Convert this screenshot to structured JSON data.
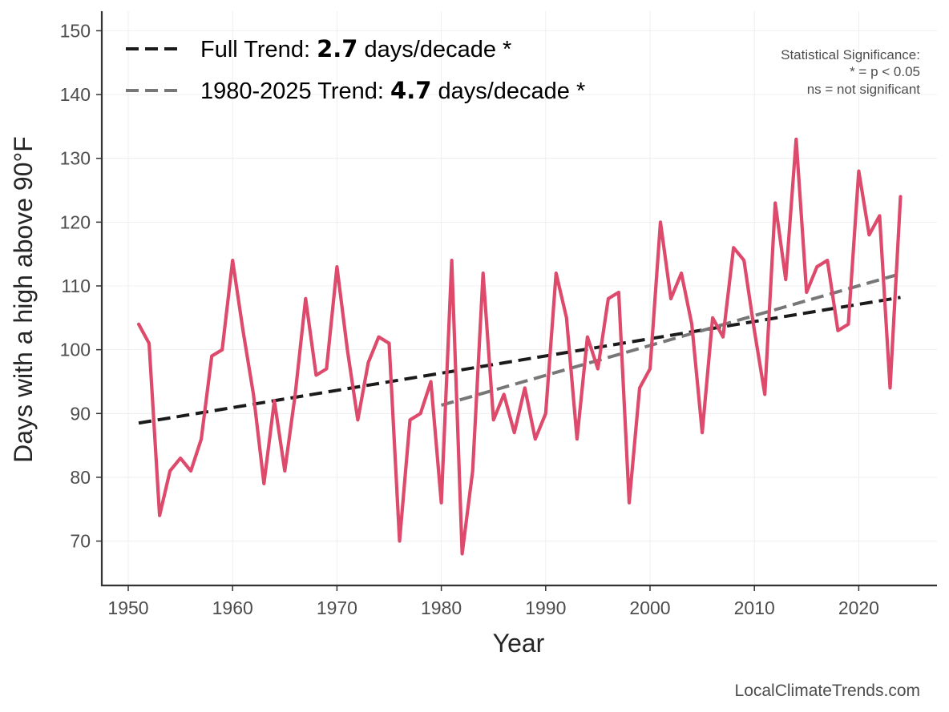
{
  "chart_data": {
    "type": "line",
    "xlabel": "Year",
    "ylabel": "Days with a high above 90°F",
    "xlim": [
      1950,
      2025
    ],
    "ylim": [
      63,
      153
    ],
    "x_ticks": [
      1950,
      1960,
      1970,
      1980,
      1990,
      2000,
      2010,
      2020
    ],
    "y_ticks": [
      70,
      80,
      90,
      100,
      110,
      120,
      130,
      140,
      150
    ],
    "grid": true,
    "series": [
      {
        "color": "#dd4a6b",
        "x": [
          1951,
          1952,
          1953,
          1954,
          1955,
          1956,
          1957,
          1958,
          1959,
          1960,
          1961,
          1962,
          1963,
          1964,
          1965,
          1966,
          1967,
          1968,
          1969,
          1970,
          1971,
          1972,
          1973,
          1974,
          1975,
          1976,
          1977,
          1978,
          1979,
          1980,
          1981,
          1982,
          1983,
          1984,
          1985,
          1986,
          1987,
          1988,
          1989,
          1990,
          1991,
          1992,
          1993,
          1994,
          1995,
          1996,
          1997,
          1998,
          1999,
          2000,
          2001,
          2002,
          2003,
          2004,
          2005,
          2006,
          2007,
          2008,
          2009,
          2010,
          2011,
          2012,
          2013,
          2014,
          2015,
          2016,
          2017,
          2018,
          2019,
          2020,
          2021,
          2022,
          2023,
          2024
        ],
        "y": [
          104,
          101,
          74,
          81,
          83,
          81,
          86,
          99,
          100,
          114,
          103,
          93,
          79,
          92,
          81,
          93,
          108,
          96,
          97,
          113,
          100,
          89,
          98,
          102,
          101,
          70,
          89,
          90,
          95,
          76,
          114,
          68,
          81,
          112,
          89,
          93,
          87,
          94,
          86,
          90,
          112,
          105,
          86,
          102,
          97,
          108,
          109,
          76,
          94,
          97,
          120,
          108,
          112,
          104,
          87,
          105,
          102,
          116,
          114,
          103,
          93,
          123,
          111,
          133,
          109,
          113,
          114,
          103,
          104,
          128,
          118,
          121,
          94,
          124
        ]
      }
    ],
    "trend_lines": [
      {
        "name": "Full Trend",
        "color": "#1a1a1a",
        "x": [
          1951,
          2024
        ],
        "y": [
          88.5,
          108.2
        ]
      },
      {
        "name": "1980-2025 Trend",
        "color": "#777777",
        "x": [
          1980,
          2024
        ],
        "y": [
          91.3,
          111.9
        ]
      }
    ],
    "legend": {
      "placement": "top-left",
      "entries": [
        {
          "prefix": "Full Trend: ",
          "bold": "2.7",
          "suffix": " days/decade *",
          "color": "#1a1a1a"
        },
        {
          "prefix": "1980-2025 Trend: ",
          "bold": "4.7",
          "suffix": " days/decade *",
          "color": "#777777"
        }
      ]
    },
    "significance_note": [
      "Statistical Significance:",
      "* = p < 0.05",
      "ns = not significant"
    ],
    "credit": "LocalClimateTrends.com"
  }
}
